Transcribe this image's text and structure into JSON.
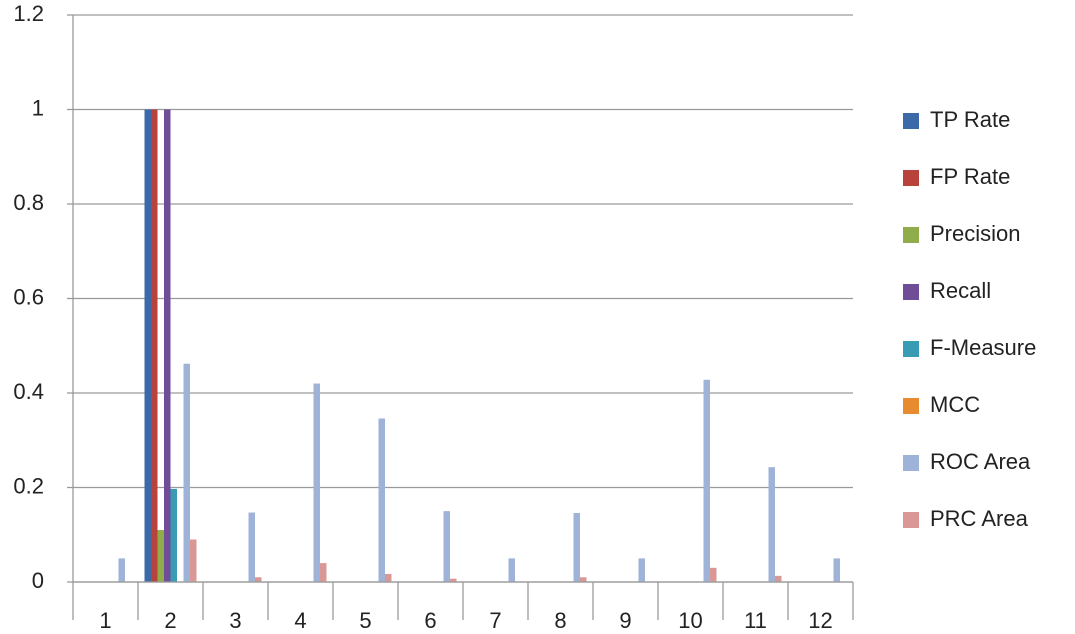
{
  "chart_data": {
    "type": "bar",
    "categories": [
      "1",
      "2",
      "3",
      "4",
      "5",
      "6",
      "7",
      "8",
      "9",
      "10",
      "11",
      "12"
    ],
    "series": [
      {
        "name": "TP Rate",
        "color": "#3c6aa8",
        "values": [
          0,
          1,
          0,
          0,
          0,
          0,
          0,
          0,
          0,
          0,
          0,
          0
        ]
      },
      {
        "name": "FP Rate",
        "color": "#b8433d",
        "values": [
          0,
          1,
          0,
          0,
          0,
          0,
          0,
          0,
          0,
          0,
          0,
          0
        ]
      },
      {
        "name": "Precision",
        "color": "#8fad4a",
        "values": [
          0,
          0.11,
          0,
          0,
          0,
          0,
          0,
          0,
          0,
          0,
          0,
          0
        ]
      },
      {
        "name": "Recall",
        "color": "#6f4e97",
        "values": [
          0,
          1,
          0,
          0,
          0,
          0,
          0,
          0,
          0,
          0,
          0,
          0
        ]
      },
      {
        "name": "F-Measure",
        "color": "#3a9bb5",
        "values": [
          0,
          0.197,
          0,
          0,
          0,
          0,
          0,
          0,
          0,
          0,
          0,
          0
        ]
      },
      {
        "name": "MCC",
        "color": "#e88b2f",
        "values": [
          0,
          0,
          0,
          0,
          0,
          0,
          0,
          0,
          0,
          0,
          0,
          0
        ]
      },
      {
        "name": "ROC Area",
        "color": "#9fb3d9",
        "values": [
          0.05,
          0.462,
          0.147,
          0.42,
          0.346,
          0.15,
          0.05,
          0.146,
          0.05,
          0.428,
          0.243,
          0.05
        ]
      },
      {
        "name": "PRC Area",
        "color": "#d99896",
        "values": [
          0,
          0.09,
          0.01,
          0.04,
          0.017,
          0.007,
          0,
          0.01,
          0,
          0.03,
          0.013,
          0
        ]
      }
    ],
    "ylim": [
      0,
      1.2
    ],
    "yticks": [
      0,
      0.2,
      0.4,
      0.6,
      0.8,
      1,
      1.2
    ],
    "grid": true,
    "legend": "right"
  }
}
